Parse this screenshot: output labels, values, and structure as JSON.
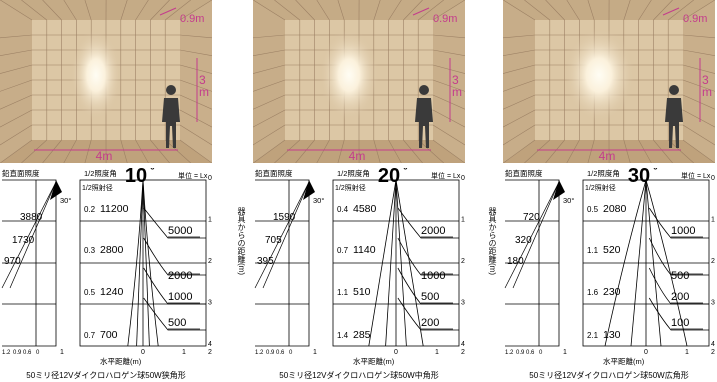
{
  "room": {
    "width_label": "4m",
    "height_label": "3",
    "height_unit": "m",
    "top_label": "0.9m"
  },
  "labels": {
    "vertical_illuminance": "鉛直面照度",
    "half_angle": "1/2照度角",
    "half_radius": "1/2照射径",
    "unit": "単位 = Lx",
    "distance_from_fixture": "器具からの距離",
    "distance_unit": "(m)",
    "horizontal_distance": "水平距離(m)"
  },
  "axis": {
    "left_ticks": [
      "1.2",
      "0.9",
      "0.6",
      "0"
    ],
    "bottom_ticks": [
      "1",
      "0",
      "1",
      "2"
    ],
    "right_ticks": [
      "0",
      "1",
      "2",
      "3",
      "4"
    ]
  },
  "colors": {
    "wall": "#d8c2a0",
    "grid": "#9c8064",
    "dimension": "#c43c8c",
    "person": "#3a3a3a"
  },
  "panels": [
    {
      "angle": "10",
      "angle_small": "30°",
      "vertical_values": [
        "3880",
        "1730",
        "970"
      ],
      "radius_values": [
        "0.2",
        "0.3",
        "0.5",
        "0.7"
      ],
      "center_values": [
        "11200",
        "2800",
        "1240",
        "700"
      ],
      "contours": [
        "5000",
        "2000",
        "1000",
        "500"
      ],
      "caption": "50ミリ径12Vダイクロハロゲン球50W狭角形"
    },
    {
      "angle": "20",
      "angle_small": "30°",
      "vertical_values": [
        "1590",
        "705",
        "395"
      ],
      "radius_values": [
        "0.4",
        "0.7",
        "1.1",
        "1.4"
      ],
      "center_values": [
        "4580",
        "1140",
        "510",
        "285"
      ],
      "contours": [
        "2000",
        "1000",
        "500",
        "200"
      ],
      "caption": "50ミリ径12Vダイクロハロゲン球50W中角形"
    },
    {
      "angle": "30",
      "angle_small": "30°",
      "vertical_values": [
        "720",
        "320",
        "180"
      ],
      "radius_values": [
        "0.5",
        "1.1",
        "1.6",
        "2.1"
      ],
      "center_values": [
        "2080",
        "520",
        "230",
        "130"
      ],
      "contours": [
        "1000",
        "500",
        "200",
        "100"
      ],
      "caption": "50ミリ径12Vダイクロハロゲン球50W広角形"
    }
  ]
}
